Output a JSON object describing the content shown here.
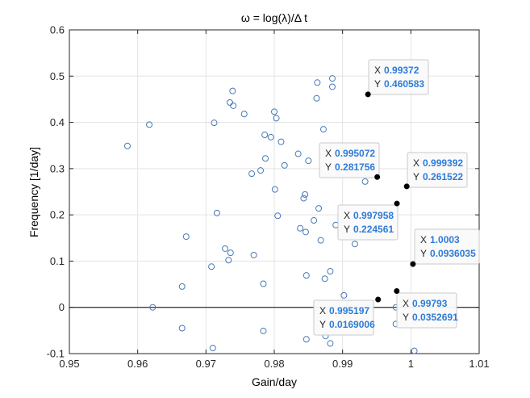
{
  "chart_data": {
    "type": "scatter",
    "title": "ω = log(λ)/Δ t",
    "xlabel": "Gain/day",
    "ylabel": "Frequency [1/day]",
    "xlim": [
      0.95,
      1.01
    ],
    "ylim": [
      -0.1,
      0.6
    ],
    "x_ticks": [
      "0.95",
      "0.96",
      "0.97",
      "0.98",
      "0.99",
      "1",
      "1.01"
    ],
    "y_ticks": [
      "-0.1",
      "0",
      "0.1",
      "0.2",
      "0.3",
      "0.4",
      "0.5",
      "0.6"
    ],
    "grid": true,
    "colors": {
      "marker": "#4a7ab5",
      "selected": "#000000",
      "grid": "#e3e3e3",
      "datatip_value": "#2e7bd8",
      "zero_line": "#000000"
    },
    "points": [
      {
        "x": 0.9585,
        "y": 0.349
      },
      {
        "x": 0.9617,
        "y": 0.395
      },
      {
        "x": 0.9622,
        "y": 0.0
      },
      {
        "x": 0.9665,
        "y": 0.045
      },
      {
        "x": 0.9665,
        "y": -0.045
      },
      {
        "x": 0.9671,
        "y": 0.153
      },
      {
        "x": 0.9708,
        "y": 0.088
      },
      {
        "x": 0.971,
        "y": -0.088
      },
      {
        "x": 0.9712,
        "y": 0.399
      },
      {
        "x": 0.9716,
        "y": 0.204
      },
      {
        "x": 0.9728,
        "y": 0.127
      },
      {
        "x": 0.9733,
        "y": 0.102
      },
      {
        "x": 0.9735,
        "y": 0.443
      },
      {
        "x": 0.9736,
        "y": 0.118
      },
      {
        "x": 0.9739,
        "y": 0.468
      },
      {
        "x": 0.974,
        "y": 0.436
      },
      {
        "x": 0.9756,
        "y": 0.418
      },
      {
        "x": 0.9767,
        "y": 0.289
      },
      {
        "x": 0.977,
        "y": 0.113
      },
      {
        "x": 0.978,
        "y": 0.296
      },
      {
        "x": 0.9784,
        "y": 0.051
      },
      {
        "x": 0.9784,
        "y": -0.051
      },
      {
        "x": 0.9786,
        "y": 0.373
      },
      {
        "x": 0.9787,
        "y": 0.322
      },
      {
        "x": 0.9795,
        "y": 0.368
      },
      {
        "x": 0.98,
        "y": 0.423
      },
      {
        "x": 0.9801,
        "y": 0.255
      },
      {
        "x": 0.9803,
        "y": 0.409
      },
      {
        "x": 0.9805,
        "y": 0.198
      },
      {
        "x": 0.981,
        "y": 0.358
      },
      {
        "x": 0.9815,
        "y": 0.307
      },
      {
        "x": 0.9835,
        "y": 0.332
      },
      {
        "x": 0.9838,
        "y": 0.171
      },
      {
        "x": 0.9843,
        "y": 0.236
      },
      {
        "x": 0.9845,
        "y": 0.244
      },
      {
        "x": 0.9846,
        "y": 0.163
      },
      {
        "x": 0.9847,
        "y": 0.069
      },
      {
        "x": 0.9847,
        "y": -0.069
      },
      {
        "x": 0.985,
        "y": 0.317
      },
      {
        "x": 0.9858,
        "y": 0.188
      },
      {
        "x": 0.9862,
        "y": 0.452
      },
      {
        "x": 0.9863,
        "y": 0.486
      },
      {
        "x": 0.9865,
        "y": 0.214
      },
      {
        "x": 0.9868,
        "y": 0.145
      },
      {
        "x": 0.9872,
        "y": 0.385
      },
      {
        "x": 0.9874,
        "y": 0.062
      },
      {
        "x": 0.9875,
        "y": -0.062
      },
      {
        "x": 0.9882,
        "y": 0.078
      },
      {
        "x": 0.9882,
        "y": -0.078
      },
      {
        "x": 0.9885,
        "y": 0.477
      },
      {
        "x": 0.9885,
        "y": 0.495
      },
      {
        "x": 0.989,
        "y": 0.178
      },
      {
        "x": 0.9902,
        "y": 0.026
      },
      {
        "x": 0.991,
        "y": 0.009
      },
      {
        "x": 0.9918,
        "y": 0.137
      },
      {
        "x": 0.9933,
        "y": 0.272
      },
      {
        "x": 0.9978,
        "y": -0.036
      },
      {
        "x": 0.9978,
        "y": 0.0
      },
      {
        "x": 1.0005,
        "y": -0.094
      }
    ],
    "datatips": [
      {
        "x": 0.99372,
        "y": 0.460583,
        "x_label": "0.99372",
        "y_label": "0.460583"
      },
      {
        "x": 0.995072,
        "y": 0.281756,
        "x_label": "0.995072",
        "y_label": "0.281756"
      },
      {
        "x": 0.999392,
        "y": 0.261522,
        "x_label": "0.999392",
        "y_label": "0.261522"
      },
      {
        "x": 0.997958,
        "y": 0.224561,
        "x_label": "0.997958",
        "y_label": "0.224561"
      },
      {
        "x": 1.0003,
        "y": 0.0936035,
        "x_label": "1.0003",
        "y_label": "0.0936035"
      },
      {
        "x": 0.99793,
        "y": 0.0352691,
        "x_label": "0.99793",
        "y_label": "0.0352691"
      },
      {
        "x": 0.995197,
        "y": 0.0169006,
        "x_label": "0.995197",
        "y_label": "0.0169006"
      }
    ],
    "datatip_labels": {
      "x": "X",
      "y": "Y"
    }
  }
}
